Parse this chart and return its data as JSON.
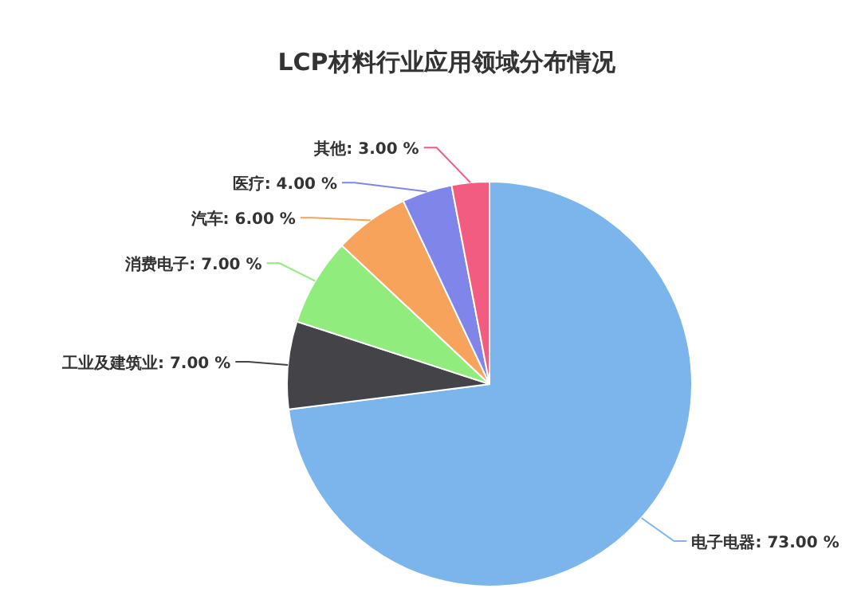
{
  "chart_data": {
    "type": "pie",
    "title": "LCP材料行业应用领域分布情况",
    "categories": [
      "电子电器",
      "工业及建筑业",
      "消费电子",
      "汽车",
      "医疗",
      "其他"
    ],
    "values": [
      73,
      7,
      7,
      6,
      4,
      3
    ],
    "value_labels": [
      "73.00 %",
      "7.00 %",
      "7.00 %",
      "6.00 %",
      "4.00 %",
      "3.00 %"
    ],
    "colors": [
      "#7cb5ec",
      "#434348",
      "#90ed7d",
      "#f7a35c",
      "#8085e9",
      "#f15c80"
    ]
  }
}
